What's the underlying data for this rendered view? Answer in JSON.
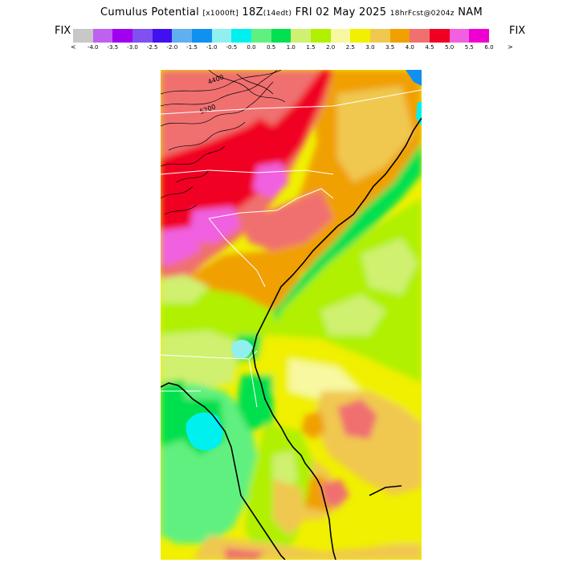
{
  "header": {
    "title_main": "Cumulus Potential",
    "title_units": "[x1000ft]",
    "valid_hour": "18Z",
    "valid_local": "(14edt)",
    "valid_date": "FRI 02 May 2025",
    "forecast_info": "18hrFcst@0204z",
    "model": "NAM"
  },
  "fix_left": "FIX",
  "fix_right": "FIX",
  "legend": {
    "arrow_left": "<",
    "arrow_right": ">",
    "colors": [
      "#c8c8c8",
      "#c060f0",
      "#a000f0",
      "#8050f0",
      "#4010f0",
      "#60b0f0",
      "#1090f0",
      "#90f0f0",
      "#00f0f0",
      "#60f080",
      "#00e050",
      "#d0f070",
      "#b0f000",
      "#f8f8a0",
      "#f0f000",
      "#f0c850",
      "#f0a000",
      "#f07070",
      "#f00020",
      "#f060e0",
      "#f000d0"
    ],
    "tick_labels": [
      "-4.0",
      "-3.5",
      "-3.0",
      "-2.5",
      "-2.0",
      "-1.5",
      "-1.0",
      "-0.5",
      "0.0",
      "0.5",
      "1.0",
      "1.5",
      "2.0",
      "2.5",
      "3.0",
      "3.5",
      "4.0",
      "4.5",
      "5.0",
      "5.5",
      "6.0"
    ]
  },
  "map": {
    "contour_labels": [
      "4400",
      "5200"
    ]
  }
}
